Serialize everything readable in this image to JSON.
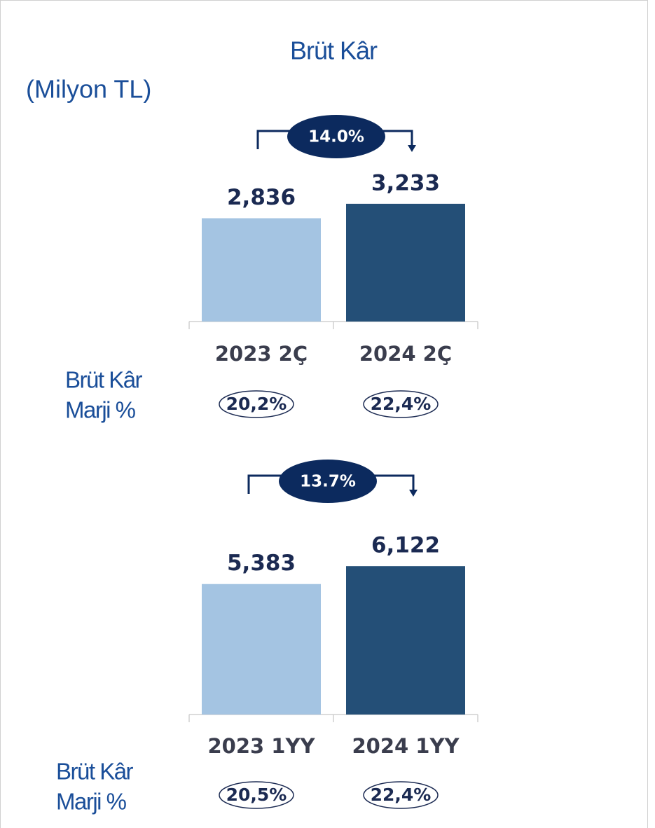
{
  "title": "Brüt Kâr",
  "unit": "(Milyon TL)",
  "chart_data": [
    {
      "type": "bar",
      "categories": [
        "2023 2Ç",
        "2024 2Ç"
      ],
      "values": [
        2836,
        3233
      ],
      "value_labels": [
        "2,836",
        "3,233"
      ],
      "colors": [
        "#a4c4e2",
        "#244f77"
      ],
      "ylim": [
        0,
        5000
      ],
      "growth": "14.0%",
      "margin_label": [
        "Brüt Kâr",
        "Marji %"
      ],
      "margins": [
        "20,2%",
        "22,4%"
      ]
    },
    {
      "type": "bar",
      "categories": [
        "2023 1YY",
        "2024 1YY"
      ],
      "values": [
        5383,
        6122
      ],
      "value_labels": [
        "5,383",
        "6,122"
      ],
      "colors": [
        "#a4c4e2",
        "#244f77"
      ],
      "ylim": [
        0,
        10000
      ],
      "growth": "13.7%",
      "margin_label": [
        "Brüt Kâr",
        "Marji %"
      ],
      "margins": [
        "20,5%",
        "22,4%"
      ]
    }
  ]
}
